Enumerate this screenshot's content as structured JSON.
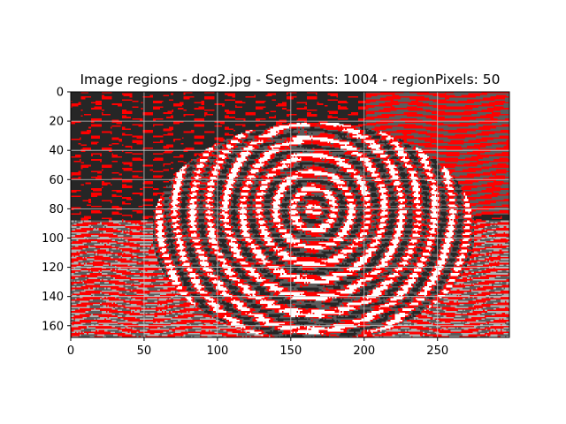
{
  "chart_data": {
    "type": "heatmap",
    "title": "Image regions - dog2.jpg - Segments: 1004 - regionPixels: 50",
    "xlabel": "",
    "ylabel": "",
    "xlim": [
      0,
      299
    ],
    "ylim": [
      168,
      0
    ],
    "image_width": 299,
    "image_height": 168,
    "xticks": [
      0,
      50,
      100,
      150,
      200,
      250
    ],
    "yticks": [
      0,
      20,
      40,
      60,
      80,
      100,
      120,
      140,
      160
    ],
    "grid": true,
    "legend": "none",
    "palette": {
      "region_red": "#ff0000",
      "region_dark": "#262626",
      "region_gray": "#5c5c5c",
      "region_light": "#b0b0b0",
      "highlight": "#ffffff",
      "grid": "#c8c8c8"
    }
  }
}
